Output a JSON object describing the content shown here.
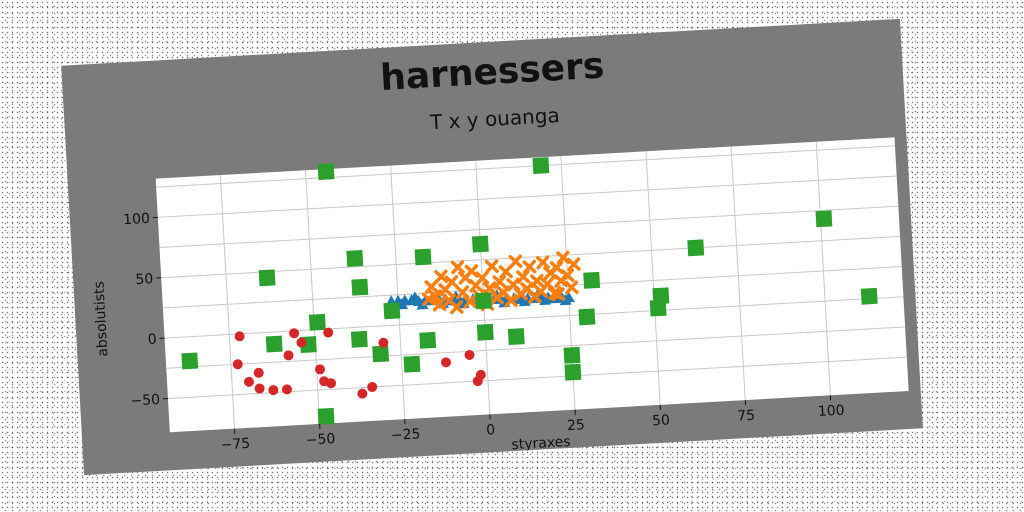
{
  "chart_data": {
    "type": "scatter",
    "title": "harnessers",
    "subtitle": "T x y ouanga",
    "xlabel": "styraxes",
    "ylabel": "absolutists",
    "xlim": [
      -94,
      123
    ],
    "ylim": [
      -78,
      132
    ],
    "xticks": [
      -75,
      -50,
      -25,
      0,
      25,
      50,
      75,
      100
    ],
    "yticks": [
      -50,
      0,
      50,
      100
    ],
    "grid": true,
    "legend": "none",
    "colors": {
      "figure_background": "#7b7b7b",
      "plot_background": "#ffffff",
      "grid": "#c8c8c8"
    },
    "series": [
      {
        "marker": "triangle",
        "color": "#1f77b4",
        "points": [
          [
            -27,
            20
          ],
          [
            -25,
            20
          ],
          [
            -23,
            20
          ],
          [
            -21,
            20
          ],
          [
            -19,
            19
          ],
          [
            -17,
            19
          ],
          [
            -15,
            19
          ],
          [
            -13,
            19
          ],
          [
            -11,
            19
          ],
          [
            -9,
            18
          ],
          [
            -7,
            18
          ],
          [
            -5,
            18
          ],
          [
            -3,
            18
          ],
          [
            -1,
            18
          ],
          [
            1,
            17
          ],
          [
            3,
            17
          ],
          [
            5,
            17
          ],
          [
            7,
            17
          ],
          [
            9,
            17
          ],
          [
            11,
            16
          ],
          [
            13,
            16
          ],
          [
            15,
            16
          ],
          [
            17,
            16
          ],
          [
            19,
            16
          ],
          [
            21,
            15
          ],
          [
            23,
            15
          ],
          [
            25,
            15
          ],
          [
            -24,
            17
          ],
          [
            -18,
            16
          ],
          [
            -12,
            16
          ],
          [
            -6,
            15
          ],
          [
            0,
            15
          ],
          [
            6,
            14
          ],
          [
            12,
            14
          ],
          [
            18,
            14
          ],
          [
            24,
            13
          ],
          [
            -20,
            22
          ],
          [
            -8,
            21
          ],
          [
            4,
            20
          ],
          [
            16,
            19
          ]
        ]
      },
      {
        "marker": "x",
        "color": "#ff7f0e",
        "points": [
          [
            -15,
            30
          ],
          [
            -14,
            22
          ],
          [
            -13,
            15
          ],
          [
            -12,
            38
          ],
          [
            -11,
            27
          ],
          [
            -10,
            18
          ],
          [
            -9,
            33
          ],
          [
            -8,
            12
          ],
          [
            -6,
            24
          ],
          [
            -5,
            36
          ],
          [
            -4,
            16
          ],
          [
            -3,
            41
          ],
          [
            -2,
            29
          ],
          [
            -1,
            20
          ],
          [
            0,
            35
          ],
          [
            1,
            13
          ],
          [
            2,
            26
          ],
          [
            3,
            44
          ],
          [
            4,
            18
          ],
          [
            5,
            31
          ],
          [
            6,
            22
          ],
          [
            7,
            39
          ],
          [
            8,
            15
          ],
          [
            9,
            28
          ],
          [
            10,
            47
          ],
          [
            11,
            20
          ],
          [
            12,
            34
          ],
          [
            13,
            24
          ],
          [
            14,
            42
          ],
          [
            15,
            17
          ],
          [
            16,
            30
          ],
          [
            17,
            21
          ],
          [
            18,
            45
          ],
          [
            19,
            27
          ],
          [
            20,
            36
          ],
          [
            21,
            19
          ],
          [
            22,
            40
          ],
          [
            23,
            29
          ],
          [
            24,
            48
          ],
          [
            25,
            33
          ],
          [
            26,
            23
          ],
          [
            27,
            42
          ],
          [
            -7,
            45
          ],
          [
            -16,
            20
          ],
          [
            22,
            18
          ]
        ]
      },
      {
        "marker": "square",
        "color": "#2ca02c",
        "points": [
          [
            -44,
            130
          ],
          [
            19,
            125
          ],
          [
            -87,
            -20
          ],
          [
            -63,
            45
          ],
          [
            -62,
            -10
          ],
          [
            -52,
            -12
          ],
          [
            -49,
            6
          ],
          [
            -48,
            -72
          ],
          [
            -37,
            57
          ],
          [
            -36,
            33
          ],
          [
            -37,
            -10
          ],
          [
            -31,
            -23
          ],
          [
            -27,
            12
          ],
          [
            -22,
            -33
          ],
          [
            -17,
            55
          ],
          [
            -17,
            -14
          ],
          [
            0,
            63
          ],
          [
            0,
            16
          ],
          [
            0,
            -10
          ],
          [
            9,
            -15
          ],
          [
            25,
            -33
          ],
          [
            25,
            -47
          ],
          [
            32,
            28
          ],
          [
            30,
            -2
          ],
          [
            51,
            2
          ],
          [
            52,
            12
          ],
          [
            63,
            50
          ],
          [
            101,
            68
          ],
          [
            113,
            2
          ]
        ]
      },
      {
        "marker": "circle",
        "color": "#d62728",
        "points": [
          [
            -72,
            -2
          ],
          [
            -73,
            -25
          ],
          [
            -70,
            -40
          ],
          [
            -67,
            -33
          ],
          [
            -67,
            -46
          ],
          [
            -63,
            -48
          ],
          [
            -59,
            -48
          ],
          [
            -58,
            -20
          ],
          [
            -56,
            -2
          ],
          [
            -54,
            -10
          ],
          [
            -49,
            -33
          ],
          [
            -48,
            -43
          ],
          [
            -46,
            -3
          ],
          [
            -46,
            -45
          ],
          [
            -37,
            -55
          ],
          [
            -34,
            -50
          ],
          [
            -30,
            -14
          ],
          [
            -12,
            -33
          ],
          [
            -5,
            -28
          ],
          [
            -3,
            -50
          ],
          [
            -2,
            -45
          ]
        ]
      }
    ]
  }
}
